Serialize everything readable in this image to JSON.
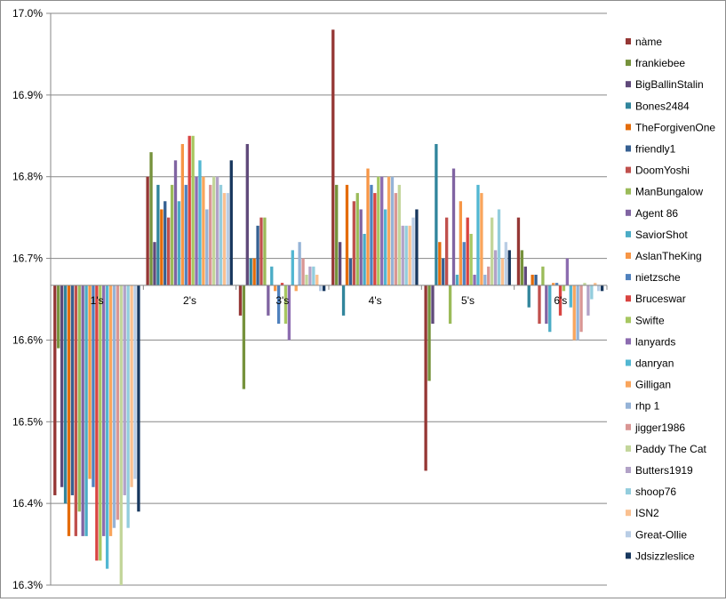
{
  "chart_data": {
    "type": "bar",
    "categories": [
      "1's",
      "2's",
      "3's",
      "4's",
      "5's",
      "6's"
    ],
    "ylim": [
      16.3,
      17.0
    ],
    "yticks": [
      "16.3%",
      "16.4%",
      "16.5%",
      "16.6%",
      "16.7%",
      "16.8%",
      "16.9%",
      "17.0%"
    ],
    "baseline": 16.667,
    "grid": "horizontal",
    "legend_position": "right",
    "series": [
      {
        "name": "nàme",
        "color": "#953735",
        "values": [
          16.41,
          16.8,
          16.63,
          16.98,
          16.44,
          16.75
        ]
      },
      {
        "name": "frankiebee",
        "color": "#76923c",
        "values": [
          16.59,
          16.83,
          16.54,
          16.79,
          16.55,
          16.71
        ]
      },
      {
        "name": "BigBallinStalin",
        "color": "#5f497a",
        "values": [
          16.42,
          16.72,
          16.84,
          16.72,
          16.62,
          16.69
        ]
      },
      {
        "name": "Bones2484",
        "color": "#31859c",
        "values": [
          16.4,
          16.79,
          16.7,
          16.63,
          16.84,
          16.64
        ]
      },
      {
        "name": "TheForgivenOne",
        "color": "#e46c0a",
        "values": [
          16.36,
          16.76,
          16.7,
          16.79,
          16.72,
          16.68
        ]
      },
      {
        "name": "friendly1",
        "color": "#366092",
        "values": [
          16.41,
          16.77,
          16.74,
          16.7,
          16.7,
          16.68
        ]
      },
      {
        "name": "DoomYoshi",
        "color": "#c0504d",
        "values": [
          16.36,
          16.75,
          16.75,
          16.77,
          16.75,
          16.62
        ]
      },
      {
        "name": "ManBungalow",
        "color": "#9bbb59",
        "values": [
          16.39,
          16.79,
          16.75,
          16.78,
          16.62,
          16.69
        ]
      },
      {
        "name": "Agent 86",
        "color": "#8064a2",
        "values": [
          16.36,
          16.82,
          16.63,
          16.76,
          16.81,
          16.62
        ]
      },
      {
        "name": "SaviorShot",
        "color": "#4bacc6",
        "values": [
          16.36,
          16.77,
          16.69,
          16.73,
          16.68,
          16.61
        ]
      },
      {
        "name": "AslanTheKing",
        "color": "#f79646",
        "values": [
          16.43,
          16.84,
          16.66,
          16.81,
          16.77,
          16.67
        ]
      },
      {
        "name": "nietzsche",
        "color": "#4f81bd",
        "values": [
          16.42,
          16.79,
          16.62,
          16.79,
          16.72,
          16.67
        ]
      },
      {
        "name": "Bruceswar",
        "color": "#d94441",
        "values": [
          16.33,
          16.85,
          16.67,
          16.78,
          16.75,
          16.63
        ]
      },
      {
        "name": "Swifte",
        "color": "#a7c761",
        "values": [
          16.33,
          16.85,
          16.62,
          16.8,
          16.73,
          16.66
        ]
      },
      {
        "name": "lanyards",
        "color": "#8c6cb0",
        "values": [
          16.36,
          16.8,
          16.6,
          16.8,
          16.68,
          16.7
        ]
      },
      {
        "name": "danryan",
        "color": "#52b7d2",
        "values": [
          16.32,
          16.82,
          16.71,
          16.76,
          16.79,
          16.64
        ]
      },
      {
        "name": "Gilligan",
        "color": "#f9a55c",
        "values": [
          16.36,
          16.8,
          16.66,
          16.8,
          16.78,
          16.6
        ]
      },
      {
        "name": "rhp 1",
        "color": "#95b3d7",
        "values": [
          16.37,
          16.76,
          16.72,
          16.8,
          16.68,
          16.6
        ]
      },
      {
        "name": "jigger1986",
        "color": "#d99694",
        "values": [
          16.38,
          16.79,
          16.7,
          16.78,
          16.69,
          16.61
        ]
      },
      {
        "name": "Paddy The Cat",
        "color": "#c3d69b",
        "values": [
          16.3,
          16.8,
          16.68,
          16.79,
          16.75,
          16.67
        ]
      },
      {
        "name": "Butters1919",
        "color": "#b2a2c7",
        "values": [
          16.41,
          16.8,
          16.69,
          16.74,
          16.71,
          16.63
        ]
      },
      {
        "name": "shoop76",
        "color": "#93cddd",
        "values": [
          16.37,
          16.79,
          16.69,
          16.74,
          16.76,
          16.65
        ]
      },
      {
        "name": "ISN2",
        "color": "#fac090",
        "values": [
          16.42,
          16.78,
          16.68,
          16.74,
          16.7,
          16.67
        ]
      },
      {
        "name": "Great-Ollie",
        "color": "#b9cde5",
        "values": [
          16.43,
          16.78,
          16.66,
          16.75,
          16.72,
          16.66
        ]
      },
      {
        "name": "Jdsizzleslice",
        "color": "#17375e",
        "values": [
          16.39,
          16.82,
          16.66,
          16.76,
          16.71,
          16.66
        ]
      }
    ]
  }
}
